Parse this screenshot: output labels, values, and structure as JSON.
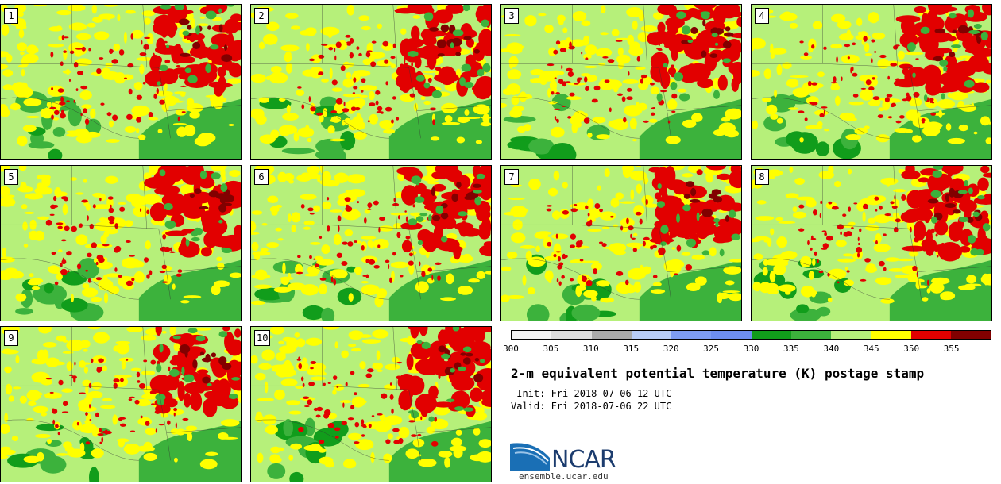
{
  "stamps": [
    "1",
    "2",
    "3",
    "4",
    "5",
    "6",
    "7",
    "8",
    "9",
    "10"
  ],
  "colorbar": {
    "colors": [
      "#f3f3f3",
      "#dcdcdc",
      "#aaaaaa",
      "#b9cdf7",
      "#7e9cf3",
      "#6e8ef0",
      "#119d1b",
      "#3cb23c",
      "#b6f07a",
      "#ffff00",
      "#e20000",
      "#820000"
    ],
    "labels": [
      "300",
      "305",
      "310",
      "315",
      "320",
      "325",
      "330",
      "335",
      "340",
      "345",
      "350",
      "355"
    ]
  },
  "map_palette": {
    "land": "#b6f07a",
    "green_dark": "#119d1b",
    "green_mid": "#3cb23c",
    "yellow": "#ffff00",
    "red": "#e20000",
    "red_dark": "#820000"
  },
  "title": "2-m equivalent potential temperature (K) postage stamp",
  "init": " Init: Fri 2018-07-06 12 UTC",
  "valid": "Valid: Fri 2018-07-06 22 UTC",
  "logo": {
    "name": "NCAR",
    "url": "ensemble.ucar.edu",
    "icon": "ncar-swoosh-logo"
  }
}
